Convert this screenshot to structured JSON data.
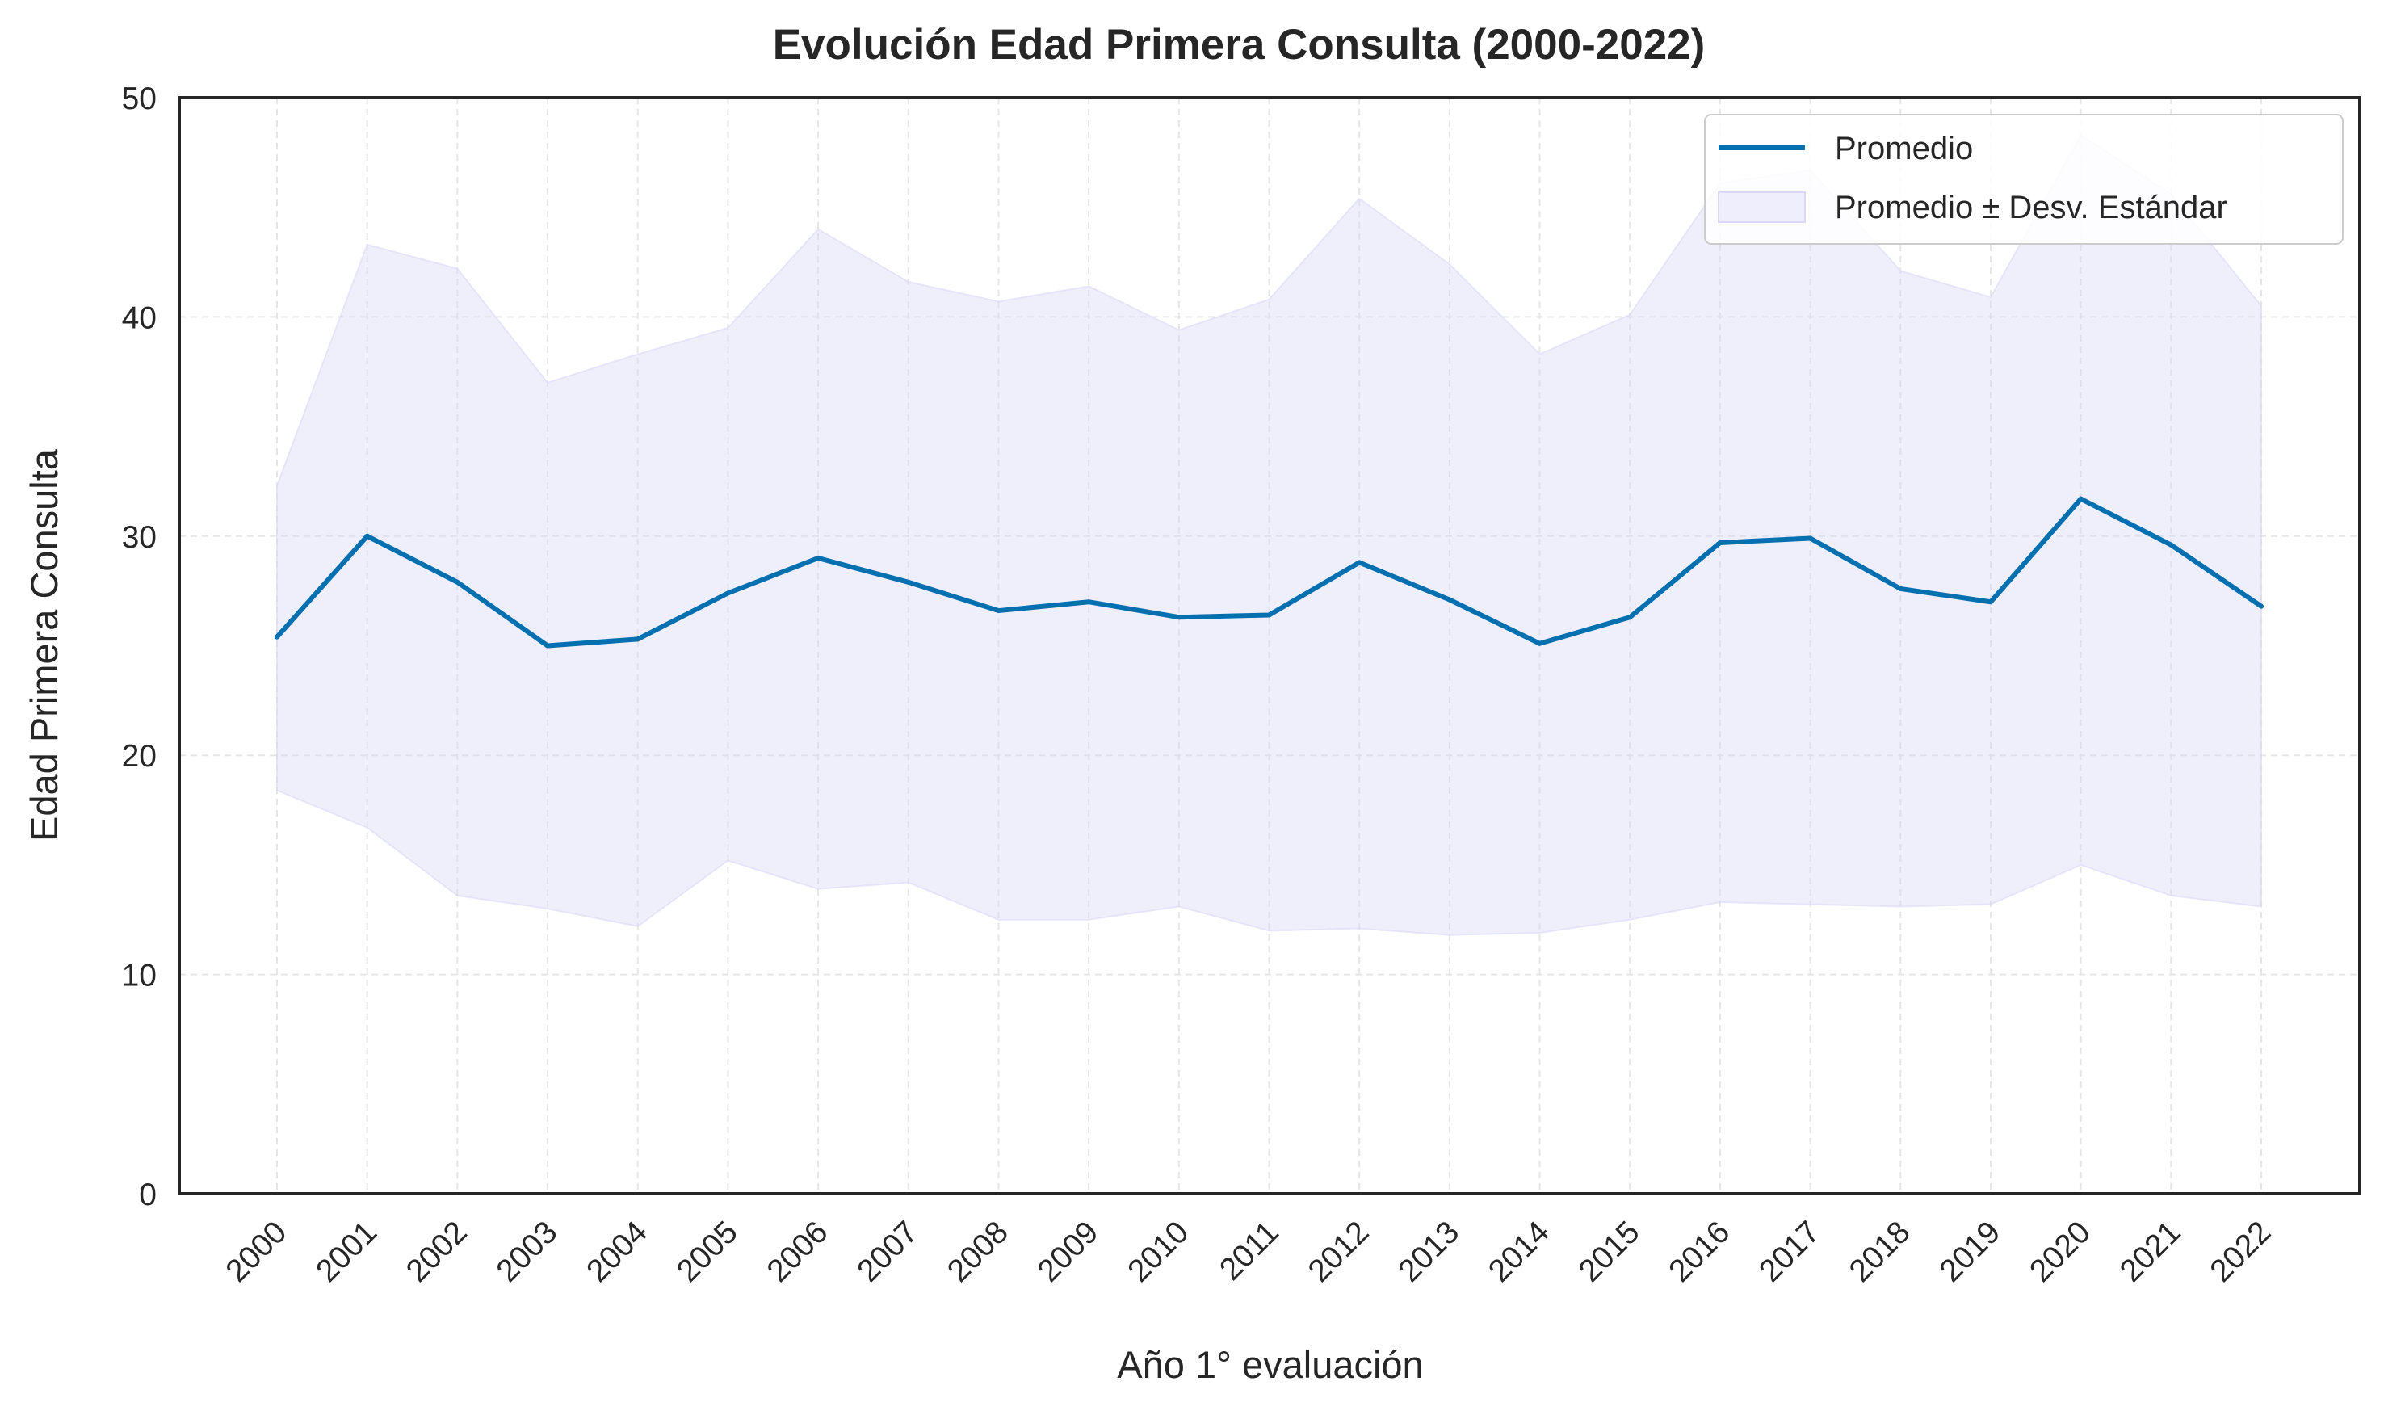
{
  "chart_data": {
    "type": "line",
    "title": "Evolución Edad Primera Consulta (2000-2022)",
    "xlabel": "Año 1° evaluación",
    "ylabel": "Edad Primera Consulta",
    "ylim": [
      0,
      50
    ],
    "yticks": [
      0,
      10,
      20,
      30,
      40,
      50
    ],
    "grid": true,
    "legend_position": "top-right",
    "x": [
      "2000",
      "2001",
      "2002",
      "2003",
      "2004",
      "2005",
      "2006",
      "2007",
      "2008",
      "2009",
      "2010",
      "2011",
      "2012",
      "2013",
      "2014",
      "2015",
      "2016",
      "2017",
      "2018",
      "2019",
      "2020",
      "2021",
      "2022"
    ],
    "series": [
      {
        "name": "Promedio",
        "type": "line",
        "color": "#0570b0",
        "values": [
          25.4,
          30.0,
          27.9,
          25.0,
          25.3,
          27.4,
          29.0,
          27.9,
          26.6,
          27.0,
          26.3,
          26.4,
          28.8,
          27.1,
          25.1,
          26.3,
          29.7,
          29.9,
          27.6,
          27.0,
          31.7,
          29.6,
          26.8
        ]
      },
      {
        "name": "Promedio ± Desv. Estándar",
        "type": "band",
        "color": "#d9d9f7",
        "lower": [
          18.4,
          16.7,
          13.6,
          13.0,
          12.2,
          15.2,
          13.9,
          14.2,
          12.5,
          12.5,
          13.1,
          12.0,
          12.1,
          11.8,
          11.9,
          12.5,
          13.3,
          13.2,
          13.1,
          13.2,
          15.0,
          13.6,
          13.1
        ],
        "upper": [
          32.3,
          43.3,
          42.2,
          37.0,
          38.3,
          39.5,
          44.0,
          41.6,
          40.7,
          41.4,
          39.4,
          40.8,
          45.4,
          42.4,
          38.3,
          40.1,
          46.1,
          46.7,
          42.1,
          40.9,
          48.3,
          45.6,
          40.5
        ]
      }
    ]
  }
}
